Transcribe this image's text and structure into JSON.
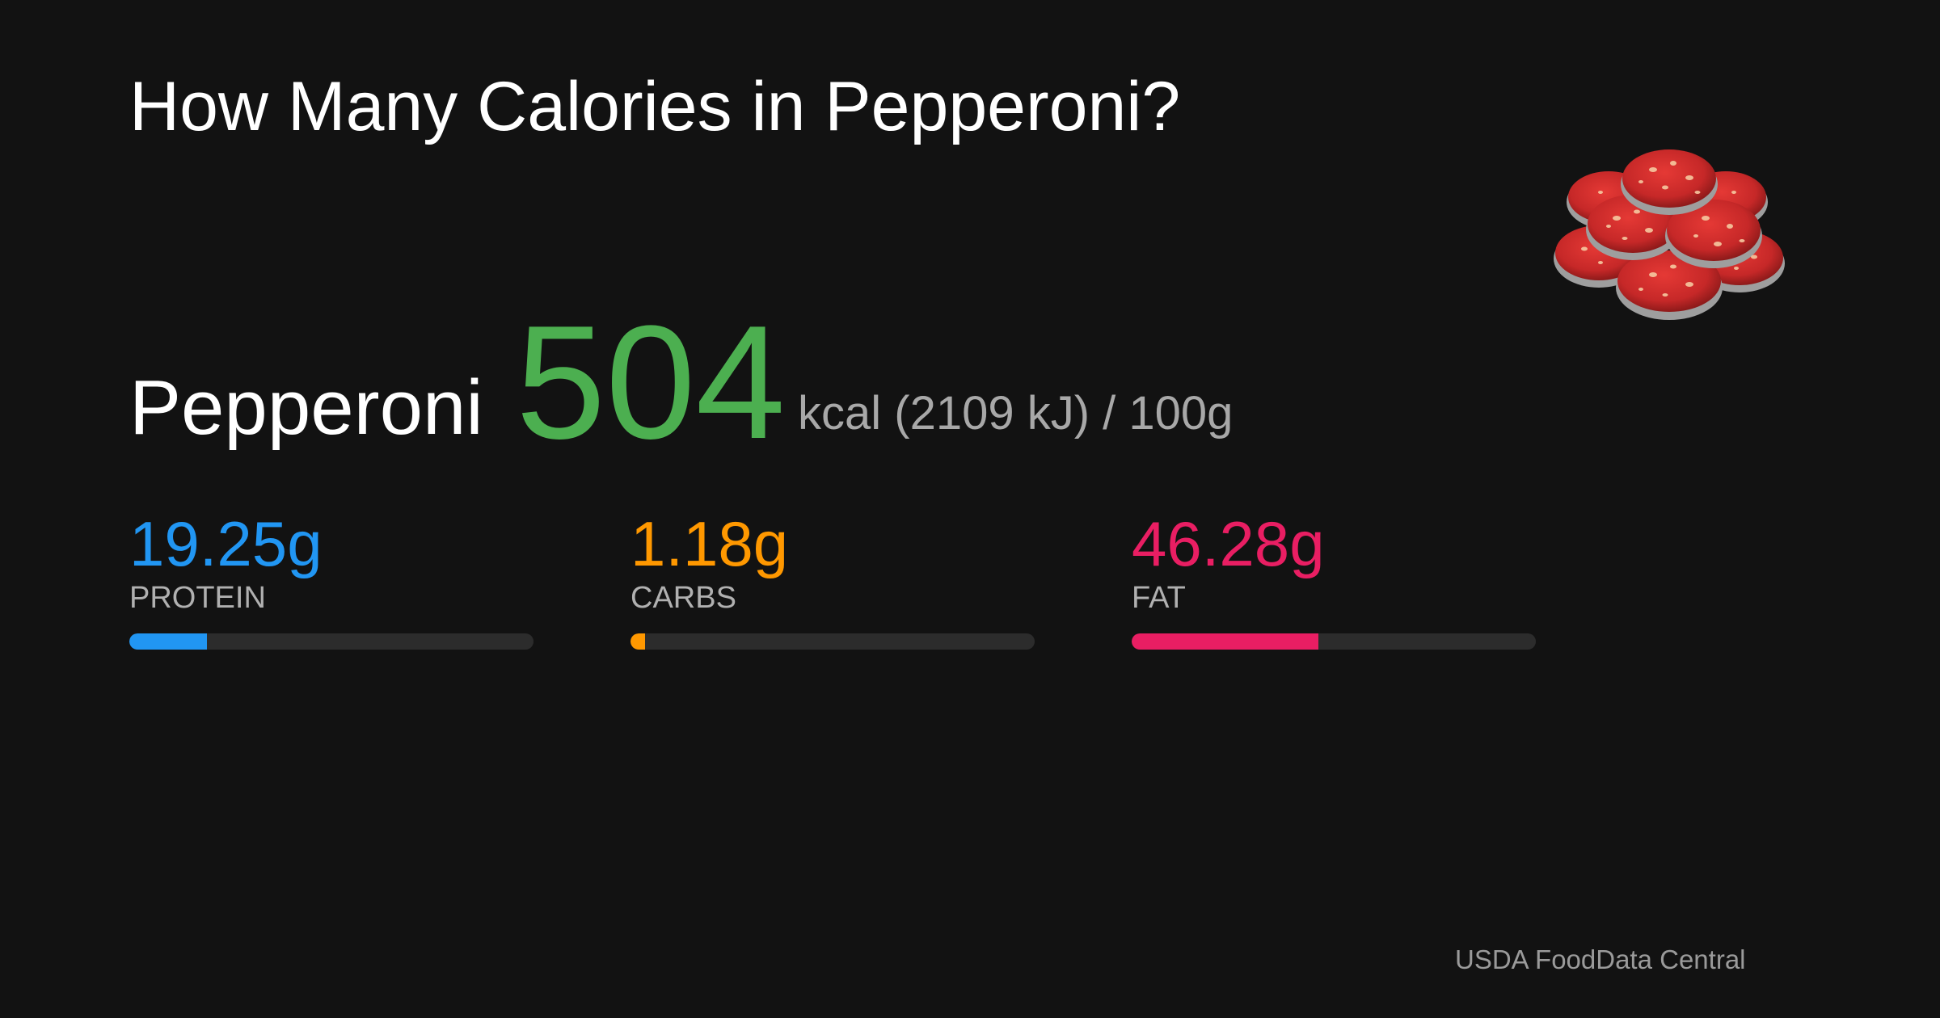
{
  "title": "How Many Calories in Pepperoni?",
  "food": {
    "name": "Pepperoni",
    "calories": "504",
    "unit_text": "kcal (2109 kJ) / 100g",
    "image_icon": "pepperoni-slices-icon"
  },
  "macros": [
    {
      "value": "19.25g",
      "label": "PROTEIN",
      "color": "#2196f3",
      "fill_fraction": 0.1925
    },
    {
      "value": "1.18g",
      "label": "CARBS",
      "color": "#ff9800",
      "fill_fraction": 0.0118
    },
    {
      "value": "46.28g",
      "label": "FAT",
      "color": "#e91e63",
      "fill_fraction": 0.4628
    }
  ],
  "colors": {
    "background": "#121212",
    "calories": "#4caf50",
    "track": "#2c2c2c"
  },
  "source": "USDA FoodData Central"
}
